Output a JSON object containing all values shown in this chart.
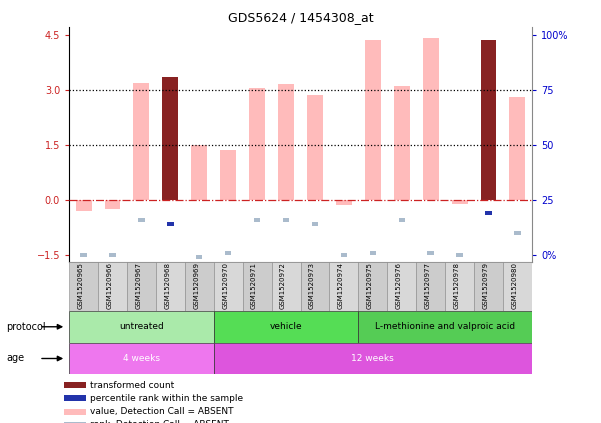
{
  "title": "GDS5624 / 1454308_at",
  "samples": [
    "GSM1520965",
    "GSM1520966",
    "GSM1520967",
    "GSM1520968",
    "GSM1520969",
    "GSM1520970",
    "GSM1520971",
    "GSM1520972",
    "GSM1520973",
    "GSM1520974",
    "GSM1520975",
    "GSM1520976",
    "GSM1520977",
    "GSM1520978",
    "GSM1520979",
    "GSM1520980"
  ],
  "value_bars": [
    -0.3,
    -0.25,
    3.2,
    3.35,
    1.5,
    1.35,
    3.05,
    3.15,
    2.85,
    -0.15,
    4.35,
    3.1,
    4.4,
    -0.1,
    4.35,
    2.8
  ],
  "value_is_dark": [
    false,
    false,
    false,
    true,
    false,
    false,
    false,
    false,
    false,
    false,
    false,
    false,
    false,
    false,
    true,
    false
  ],
  "rank_dots": [
    -1.5,
    -1.5,
    -0.55,
    -0.65,
    -1.55,
    -1.45,
    -0.55,
    -0.55,
    -0.65,
    -1.5,
    -1.45,
    -0.55,
    -1.45,
    -1.5,
    -0.35,
    -0.9
  ],
  "rank_is_dark": [
    false,
    false,
    false,
    true,
    false,
    false,
    false,
    false,
    false,
    false,
    false,
    false,
    false,
    false,
    true,
    false
  ],
  "ylim": [
    -1.7,
    4.7
  ],
  "yticks_left": [
    -1.5,
    0,
    1.5,
    3,
    4.5
  ],
  "hlines": [
    0,
    1.5,
    3.0
  ],
  "hline_styles": [
    "dashdot",
    "dotted",
    "dotted"
  ],
  "hline_colors": [
    "#cc2222",
    "#000000",
    "#000000"
  ],
  "protocol_groups": [
    {
      "label": "untreated",
      "start": 0,
      "end": 4,
      "color": "#aaeaaa"
    },
    {
      "label": "vehicle",
      "start": 5,
      "end": 9,
      "color": "#55dd55"
    },
    {
      "label": "L-methionine and valproic acid",
      "start": 10,
      "end": 15,
      "color": "#55cc55"
    }
  ],
  "age_groups": [
    {
      "label": "4 weeks",
      "start": 0,
      "end": 4,
      "color": "#ee77ee"
    },
    {
      "label": "12 weeks",
      "start": 5,
      "end": 15,
      "color": "#dd55dd"
    }
  ],
  "bar_color_light": "#ffbbbb",
  "bar_color_dark": "#882222",
  "rank_color_light": "#aabbcc",
  "rank_color_dark": "#2233aa",
  "label_color_left": "#cc2222",
  "label_color_right": "#0000cc",
  "right_tick_labels": [
    "0%",
    "25",
    "50",
    "75",
    "100%"
  ],
  "right_tick_positions": [
    -1.5,
    0.0,
    1.5,
    3.0,
    4.5
  ]
}
